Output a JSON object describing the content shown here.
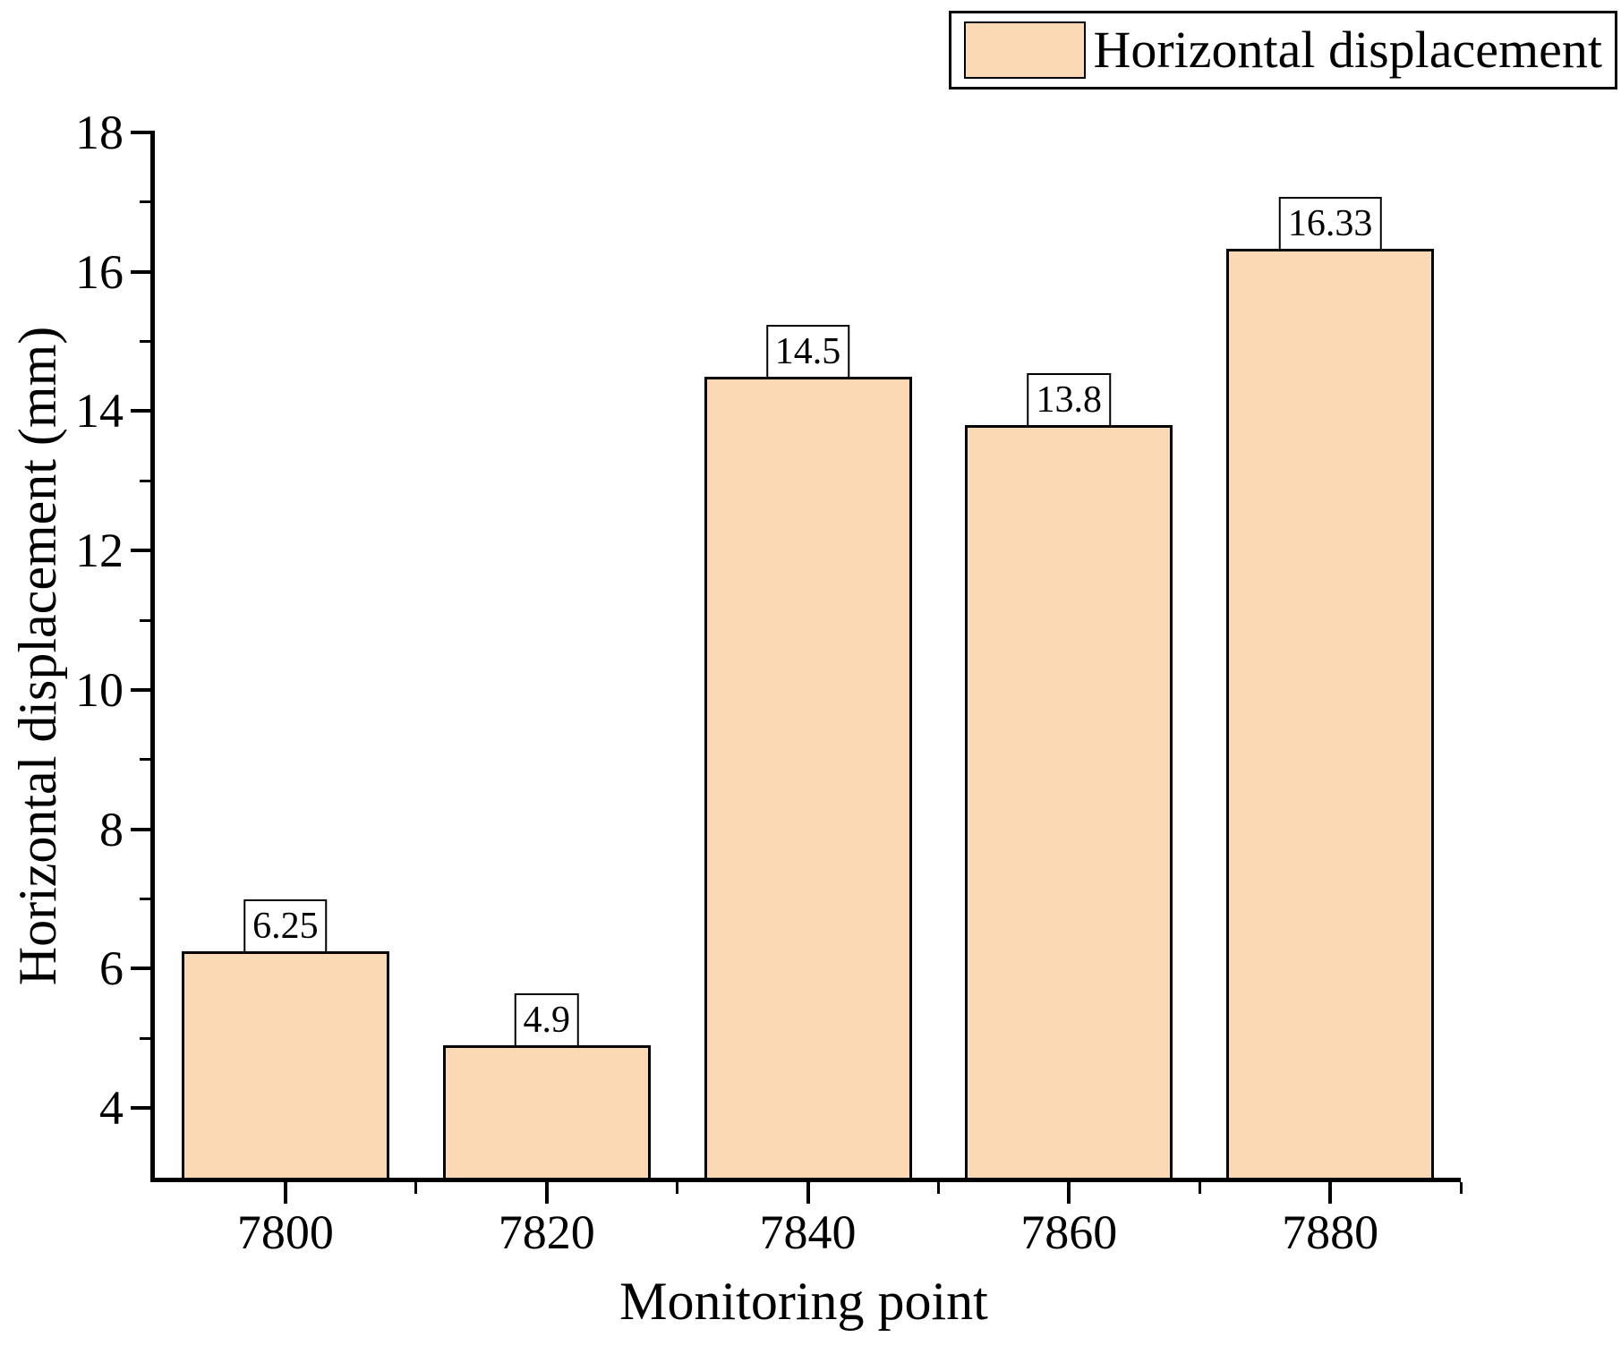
{
  "chart_data": {
    "type": "bar",
    "legend_label": "Horizontal displacement",
    "xlabel": "Monitoring point",
    "ylabel": "Horizontal displacement (mm)",
    "categories": [
      "7800",
      "7820",
      "7840",
      "7860",
      "7880"
    ],
    "values": [
      6.25,
      4.9,
      14.5,
      13.8,
      16.33
    ],
    "value_labels": [
      "6.25",
      "4.9",
      "14.5",
      "13.8",
      "16.33"
    ],
    "ylim": [
      3,
      18
    ],
    "y_major_ticks": [
      4,
      6,
      8,
      10,
      12,
      14,
      16,
      18
    ],
    "y_minor_ticks": [
      5,
      7,
      9,
      11,
      13,
      15,
      17
    ],
    "grid": false,
    "legend_position": "top-right",
    "colors": {
      "bar_fill": "#fcd9b5",
      "bar_border": "#000000",
      "axis": "#000000",
      "text": "#000000",
      "background": "#ffffff"
    }
  }
}
